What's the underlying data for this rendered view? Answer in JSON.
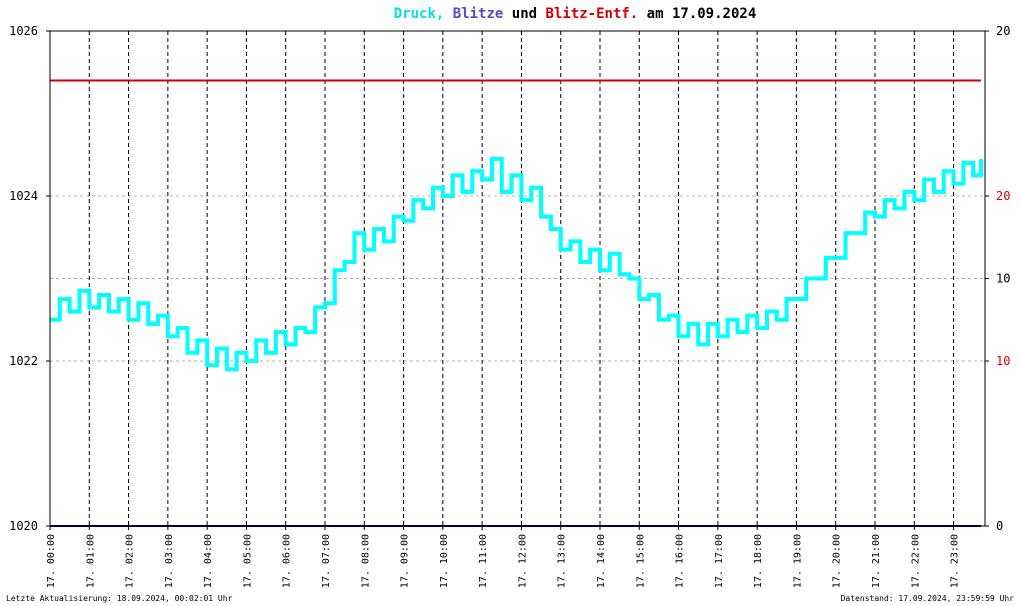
{
  "chart_data": {
    "type": "line",
    "title_parts": [
      {
        "text": "Druck,",
        "color": "#00e0e0"
      },
      {
        "text": "Blitze",
        "color": "#5050c0"
      },
      {
        "text": "und",
        "color": "#000000"
      },
      {
        "text": "Blitz-Entf.",
        "color": "#d00000"
      },
      {
        "text": "am 17.09.2024",
        "color": "#000000"
      }
    ],
    "footer_left": "Letzte Aktualisierung: 18.09.2024, 00:02:01 Uhr",
    "footer_right": "Datenstand: 17.09.2024, 23:59:59 Uhr",
    "xlim": [
      0,
      23.8
    ],
    "xticks": [
      {
        "value": 0,
        "label": "17. 00:00"
      },
      {
        "value": 1,
        "label": "17. 01:00"
      },
      {
        "value": 2,
        "label": "17. 02:00"
      },
      {
        "value": 3,
        "label": "17. 03:00"
      },
      {
        "value": 4,
        "label": "17. 04:00"
      },
      {
        "value": 5,
        "label": "17. 05:00"
      },
      {
        "value": 6,
        "label": "17. 06:00"
      },
      {
        "value": 7,
        "label": "17. 07:00"
      },
      {
        "value": 8,
        "label": "17. 08:00"
      },
      {
        "value": 9,
        "label": "17. 09:00"
      },
      {
        "value": 10,
        "label": "17. 10:00"
      },
      {
        "value": 11,
        "label": "17. 11:00"
      },
      {
        "value": 12,
        "label": "17. 12:00"
      },
      {
        "value": 13,
        "label": "17. 13:00"
      },
      {
        "value": 14,
        "label": "17. 14:00"
      },
      {
        "value": 15,
        "label": "17. 15:00"
      },
      {
        "value": 16,
        "label": "17. 16:00"
      },
      {
        "value": 17,
        "label": "17. 17:00"
      },
      {
        "value": 18,
        "label": "17. 18:00"
      },
      {
        "value": 19,
        "label": "17. 19:00"
      },
      {
        "value": 20,
        "label": "17. 20:00"
      },
      {
        "value": 21,
        "label": "17. 21:00"
      },
      {
        "value": 22,
        "label": "17. 22:00"
      },
      {
        "value": 23,
        "label": "17. 23:00"
      }
    ],
    "ylim": [
      1020,
      1026
    ],
    "yticks": [
      1020,
      1022,
      1024,
      1026
    ],
    "y2lim": [
      0,
      20
    ],
    "y2ticks": [
      0,
      10,
      20
    ],
    "y2color": "#000000",
    "y3lim": [
      0,
      30
    ],
    "y3ticks": [
      10,
      20
    ],
    "y3color": "#d00000",
    "grid": true,
    "series": [
      {
        "color": "#00ffff",
        "axis": "y",
        "x": [
          0,
          0.25,
          0.5,
          0.75,
          1,
          1.25,
          1.5,
          1.75,
          2,
          2.25,
          2.5,
          2.75,
          3,
          3.25,
          3.5,
          3.75,
          4,
          4.25,
          4.5,
          4.75,
          5,
          5.25,
          5.5,
          5.75,
          6,
          6.25,
          6.5,
          6.75,
          7,
          7.25,
          7.5,
          7.75,
          8,
          8.25,
          8.5,
          8.75,
          9,
          9.25,
          9.5,
          9.75,
          10,
          10.25,
          10.5,
          10.75,
          11,
          11.25,
          11.5,
          11.75,
          12,
          12.25,
          12.5,
          12.75,
          13,
          13.25,
          13.5,
          13.75,
          14,
          14.25,
          14.5,
          14.75,
          15,
          15.25,
          15.5,
          15.75,
          16,
          16.25,
          16.5,
          16.75,
          17,
          17.25,
          17.5,
          17.75,
          18,
          18.25,
          18.5,
          18.75,
          19,
          19.25,
          19.5,
          19.75,
          20,
          20.25,
          20.5,
          20.75,
          21,
          21.25,
          21.5,
          21.75,
          22,
          22.25,
          22.5,
          22.75,
          23,
          23.25,
          23.5,
          23.7
        ],
        "values": [
          1022.5,
          1022.75,
          1022.6,
          1022.85,
          1022.65,
          1022.8,
          1022.6,
          1022.75,
          1022.5,
          1022.7,
          1022.45,
          1022.55,
          1022.3,
          1022.4,
          1022.1,
          1022.25,
          1021.95,
          1022.15,
          1021.9,
          1022.1,
          1022.0,
          1022.25,
          1022.1,
          1022.35,
          1022.2,
          1022.4,
          1022.35,
          1022.65,
          1022.7,
          1023.1,
          1023.2,
          1023.55,
          1023.35,
          1023.6,
          1023.45,
          1023.75,
          1023.7,
          1023.95,
          1023.85,
          1024.1,
          1024.0,
          1024.25,
          1024.05,
          1024.3,
          1024.2,
          1024.45,
          1024.05,
          1024.25,
          1023.95,
          1024.1,
          1023.75,
          1023.6,
          1023.35,
          1023.45,
          1023.2,
          1023.35,
          1023.1,
          1023.3,
          1023.05,
          1023.0,
          1022.75,
          1022.8,
          1022.5,
          1022.55,
          1022.3,
          1022.45,
          1022.2,
          1022.45,
          1022.3,
          1022.5,
          1022.35,
          1022.55,
          1022.4,
          1022.6,
          1022.5,
          1022.75,
          1022.75,
          1023.0,
          1023.0,
          1023.25,
          1023.25,
          1023.55,
          1023.55,
          1023.8,
          1023.75,
          1023.95,
          1023.85,
          1024.05,
          1023.95,
          1024.2,
          1024.05,
          1024.3,
          1024.15,
          1024.4,
          1024.25,
          1024.45
        ]
      },
      {
        "color": "#000080",
        "axis": "y2",
        "x": [
          0,
          23.7
        ],
        "values": [
          0,
          0
        ]
      },
      {
        "color": "#d00000",
        "axis": "y3",
        "x": [
          0,
          23.7
        ],
        "values": [
          27,
          27
        ]
      }
    ]
  }
}
